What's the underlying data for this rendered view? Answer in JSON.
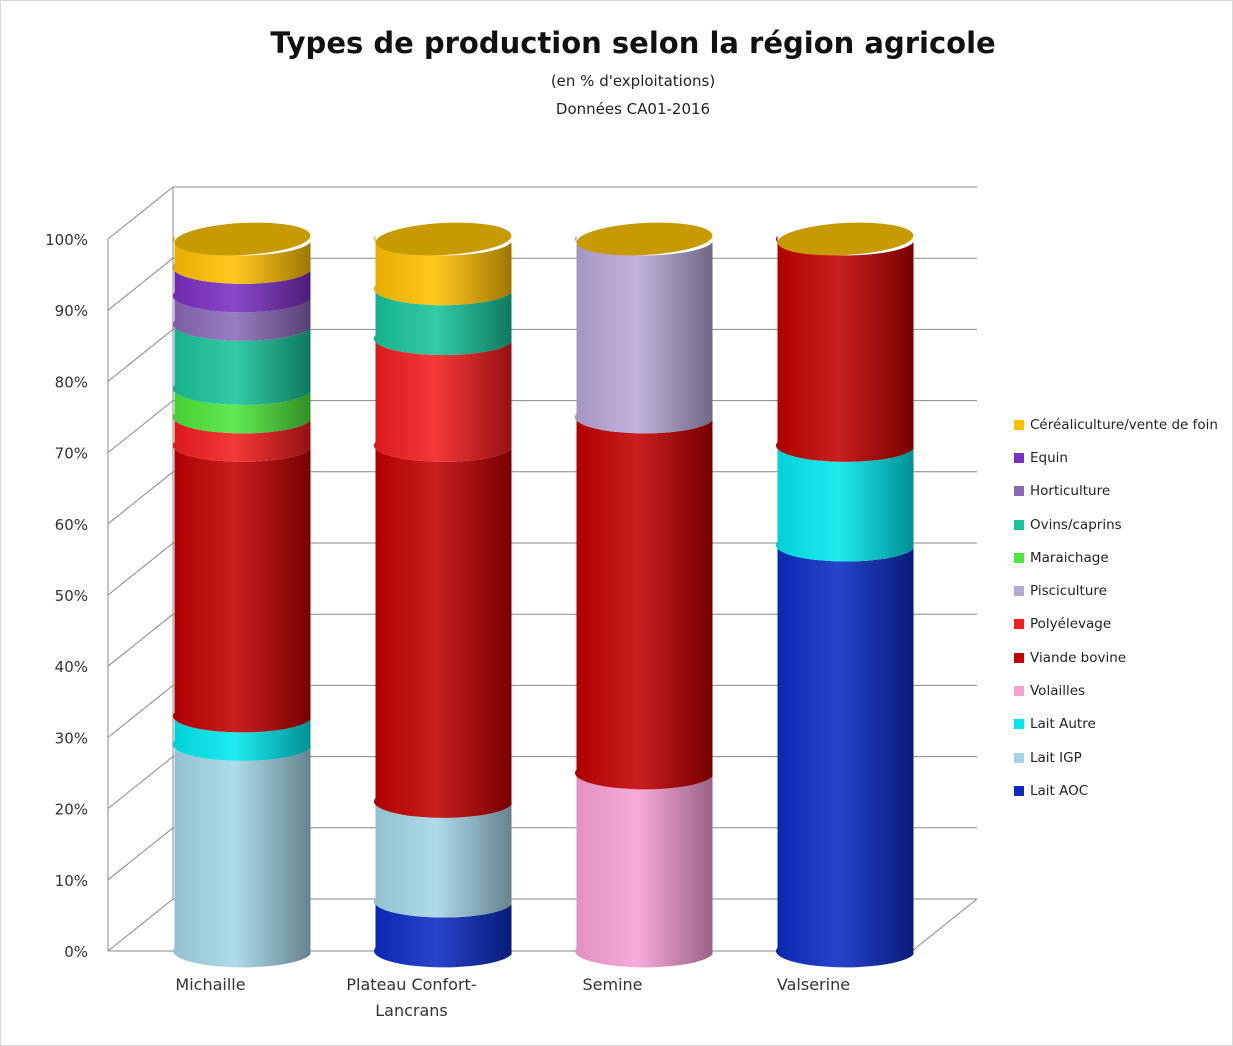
{
  "chart_data": {
    "type": "bar",
    "stacked": true,
    "title": "Types de production selon la région agricole",
    "subtitle": [
      "(en % d'exploitations)",
      "Données CA01-2016"
    ],
    "categories": [
      "Michaille",
      "Plateau Confort-Lancrans",
      "Semine",
      "Valserine"
    ],
    "ylim": [
      0,
      100
    ],
    "y_ticks": [
      "0%",
      "10%",
      "20%",
      "30%",
      "40%",
      "50%",
      "60%",
      "70%",
      "80%",
      "90%",
      "100%"
    ],
    "legend_position": "right",
    "grid": true,
    "series": [
      {
        "name": "Lait AOC",
        "color": "#0b2bc4",
        "values": [
          0,
          7,
          0,
          57
        ]
      },
      {
        "name": "Lait IGP",
        "color": "#a3d5e6",
        "values": [
          29,
          14,
          0,
          0
        ]
      },
      {
        "name": "Lait Autre",
        "color": "#00e8ee",
        "values": [
          4,
          0,
          0,
          14
        ]
      },
      {
        "name": "Volailles",
        "color": "#f7a0d6",
        "values": [
          0,
          0,
          25,
          0
        ]
      },
      {
        "name": "Viande bovine",
        "color": "#c20000",
        "values": [
          38,
          50,
          50,
          29
        ]
      },
      {
        "name": "Polyélevage",
        "color": "#f21d1d",
        "values": [
          4,
          15,
          0,
          0
        ]
      },
      {
        "name": "Pisciculture",
        "color": "#b7a7d6",
        "values": [
          0,
          0,
          25,
          0
        ]
      },
      {
        "name": "Maraichage",
        "color": "#4de63a",
        "values": [
          4,
          0,
          0,
          0
        ]
      },
      {
        "name": "Ovins/caprins",
        "color": "#17c49a",
        "values": [
          9,
          7,
          0,
          0
        ]
      },
      {
        "name": "Horticulture",
        "color": "#8a6ab8",
        "values": [
          4,
          0,
          0,
          0
        ]
      },
      {
        "name": "Equin",
        "color": "#7b2fc2",
        "values": [
          4,
          0,
          0,
          0
        ]
      },
      {
        "name": "Céréaliculture/vente de foin",
        "color": "#ffc000",
        "values": [
          4,
          7,
          0,
          0
        ]
      }
    ],
    "legend_order": [
      "Céréaliculture/vente de foin",
      "Equin",
      "Horticulture",
      "Ovins/caprins",
      "Maraichage",
      "Pisciculture",
      "Polyélevage",
      "Viande bovine",
      "Volailles",
      "Lait Autre",
      "Lait IGP",
      "Lait AOC"
    ]
  }
}
